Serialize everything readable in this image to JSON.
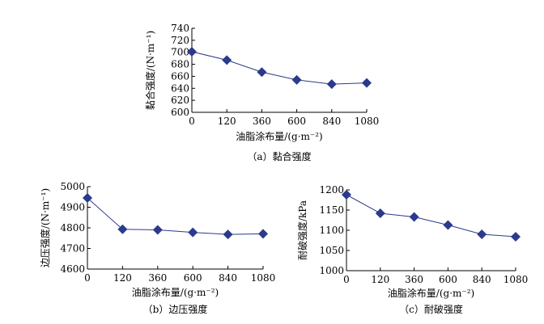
{
  "chart_data": [
    {
      "id": "a",
      "type": "line",
      "caption": "（a）黏合强度",
      "ylabel": "黏合强度/(N·m⁻¹)",
      "xlabel": "油脂涂布量/(g·m⁻²)",
      "categories": [
        "0",
        "120",
        "360",
        "600",
        "840",
        "1080"
      ],
      "ylim": [
        600,
        740
      ],
      "yticks": [
        "600",
        "620",
        "640",
        "660",
        "680",
        "700",
        "720",
        "740"
      ],
      "series": [
        {
          "values": [
            701,
            687,
            667,
            654,
            647,
            649
          ]
        }
      ],
      "marker": "diamond",
      "color": "#2b3a8c"
    },
    {
      "id": "b",
      "type": "line",
      "caption": "（b）边压强度",
      "ylabel": "边压强度/(N·m⁻¹)",
      "xlabel": "油脂涂布量/(g·m⁻²)",
      "categories": [
        "0",
        "120",
        "360",
        "600",
        "840",
        "1080"
      ],
      "ylim": [
        4600,
        5000
      ],
      "yticks": [
        "4600",
        "4700",
        "4800",
        "4900",
        "5000"
      ],
      "series": [
        {
          "values": [
            4945,
            4793,
            4790,
            4778,
            4768,
            4771
          ]
        }
      ],
      "marker": "diamond",
      "color": "#2b3a8c"
    },
    {
      "id": "c",
      "type": "line",
      "caption": "（c）耐破强度",
      "ylabel": "耐破强度/kPa",
      "xlabel": "油脂涂布量/(g·m⁻²)",
      "categories": [
        "0",
        "120",
        "360",
        "600",
        "840",
        "1080"
      ],
      "ylim": [
        1000,
        1200
      ],
      "yticks": [
        "1000",
        "1050",
        "1100",
        "1150",
        "1200"
      ],
      "series": [
        {
          "values": [
            1188,
            1142,
            1133,
            1113,
            1090,
            1084
          ]
        }
      ],
      "marker": "diamond",
      "color": "#2b3a8c"
    }
  ]
}
